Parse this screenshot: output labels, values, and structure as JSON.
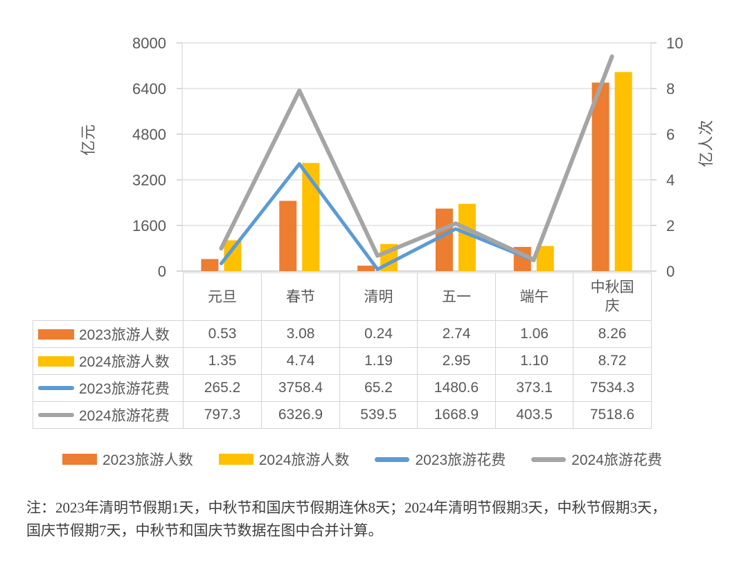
{
  "chart_data": {
    "type": "combo-bar-line",
    "categories": [
      "元旦",
      "春节",
      "清明",
      "五一",
      "端午",
      "中秋国庆"
    ],
    "series": [
      {
        "name": "2023旅游人数",
        "type": "bar",
        "axis": "right",
        "color": "#ED7D31",
        "values": [
          0.53,
          3.08,
          0.24,
          2.74,
          1.06,
          8.26
        ],
        "display": [
          "0.53",
          "3.08",
          "0.24",
          "2.74",
          "1.06",
          "8.26"
        ]
      },
      {
        "name": "2024旅游人数",
        "type": "bar",
        "axis": "right",
        "color": "#FFC000",
        "values": [
          1.35,
          4.74,
          1.19,
          2.95,
          1.1,
          8.72
        ],
        "display": [
          "1.35",
          "4.74",
          "1.19",
          "2.95",
          "1.10",
          "8.72"
        ]
      },
      {
        "name": "2023旅游花费",
        "type": "line",
        "axis": "left",
        "color": "#5B9BD5",
        "values": [
          265.2,
          3758.4,
          65.2,
          1480.6,
          373.1,
          7534.3
        ],
        "display": [
          "265.2",
          "3758.4",
          "65.2",
          "1480.6",
          "373.1",
          "7534.3"
        ]
      },
      {
        "name": "2024旅游花费",
        "type": "line",
        "axis": "left",
        "color": "#A5A5A5",
        "values": [
          797.3,
          6326.9,
          539.5,
          1668.9,
          403.5,
          7518.6
        ],
        "display": [
          "797.3",
          "6326.9",
          "539.5",
          "1668.9",
          "403.5",
          "7518.6"
        ]
      }
    ],
    "left_axis": {
      "title": "亿元",
      "min": 0,
      "max": 8000,
      "ticks": [
        0,
        1600,
        3200,
        4800,
        6400,
        8000
      ]
    },
    "right_axis": {
      "title": "亿人次",
      "min": 0,
      "max": 10,
      "ticks": [
        0,
        2,
        4,
        6,
        8,
        10
      ]
    },
    "grid": true,
    "legend_position": "bottom",
    "data_table_shown": true
  },
  "note": "注：2023年清明节假期1天，中秋节和国庆节假期连休8天；2024年清明节假期3天，中秋节假期3天，国庆节假期7天，中秋节和国庆节数据在图中合并计算。"
}
